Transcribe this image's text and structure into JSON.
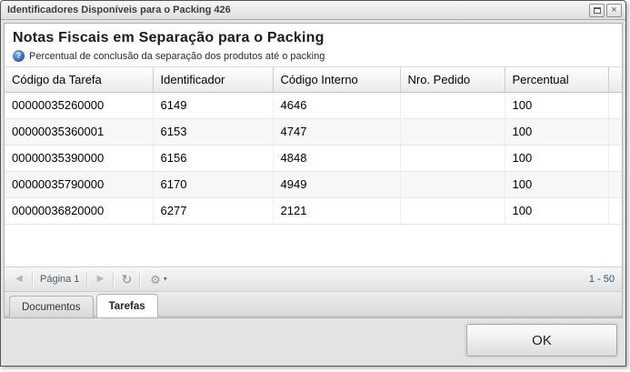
{
  "colors": {
    "info_icon_blue": "#1f5bb5",
    "titlebar_text": "#3d3d3d",
    "range_text": "#32506e"
  },
  "window": {
    "title": "Identificadores Disponíveis para o Packing 426"
  },
  "panel": {
    "title": "Notas Fiscais em Separação para o Packing",
    "subtitle": "Percentual de conclusão da separação dos produtos até o packing"
  },
  "grid": {
    "columns": [
      "Código da Tarefa",
      "Identificador",
      "Código Interno",
      "Nro. Pedido",
      "Percentual"
    ],
    "rows": [
      [
        "00000035260000",
        "6149",
        "4646",
        "",
        "100"
      ],
      [
        "00000035360001",
        "6153",
        "4747",
        "",
        "100"
      ],
      [
        "00000035390000",
        "6156",
        "4848",
        "",
        "100"
      ],
      [
        "00000035790000",
        "6170",
        "4949",
        "",
        "100"
      ],
      [
        "00000036820000",
        "6277",
        "2121",
        "",
        "100"
      ]
    ]
  },
  "paging": {
    "page_label": "Página 1",
    "range_label": "1 - 50"
  },
  "tabs": {
    "items": [
      {
        "label": "Documentos",
        "active": false
      },
      {
        "label": "Tarefas",
        "active": true
      }
    ]
  },
  "footer": {
    "ok_label": "OK"
  },
  "icons": {
    "info": "?",
    "close": "×",
    "prev": "◀",
    "next": "▶",
    "refresh": "↻",
    "gear": "⚙",
    "caret": "▾"
  }
}
